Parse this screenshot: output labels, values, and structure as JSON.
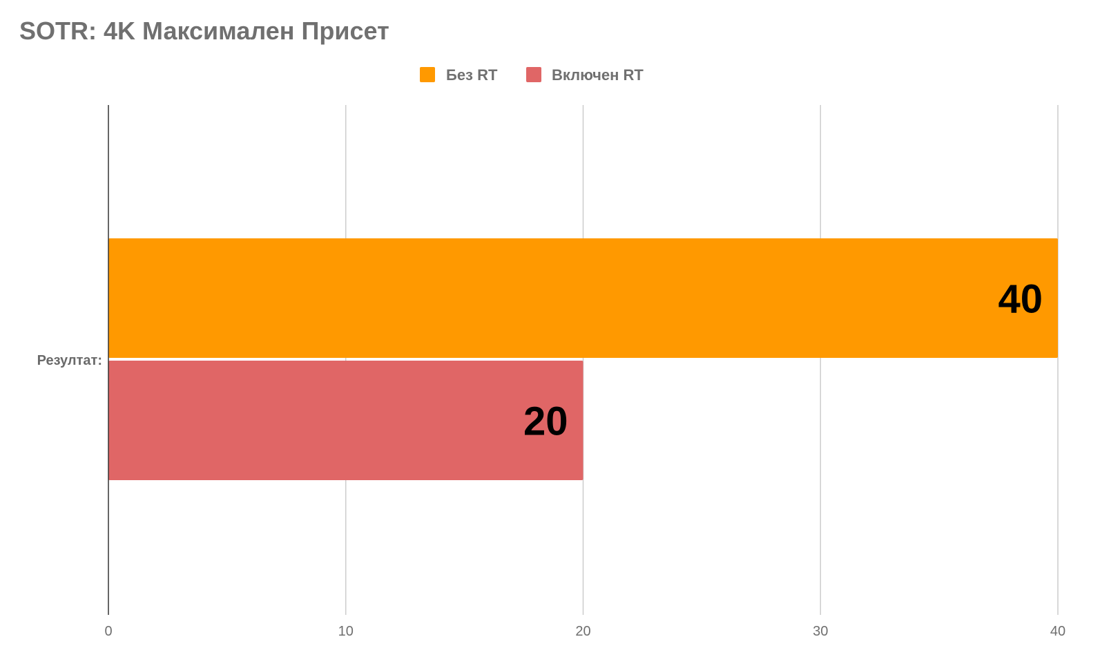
{
  "chart_data": {
    "type": "bar",
    "orientation": "horizontal",
    "title": "SOTR: 4K Максимален Присет",
    "categories": [
      "Резултат:"
    ],
    "series": [
      {
        "name": "Без RT",
        "values": [
          40
        ],
        "color": "#FF9900"
      },
      {
        "name": "Включен RT",
        "values": [
          20
        ],
        "color": "#E06666"
      }
    ],
    "xlabel": "",
    "ylabel": "",
    "xlim": [
      0,
      40
    ],
    "ticks": [
      0,
      10,
      20,
      30,
      40
    ],
    "tick_labels": [
      "0",
      "10",
      "20",
      "30",
      "40"
    ],
    "data_labels": [
      "40",
      "20"
    ],
    "grid": true,
    "legend": "top-center"
  }
}
